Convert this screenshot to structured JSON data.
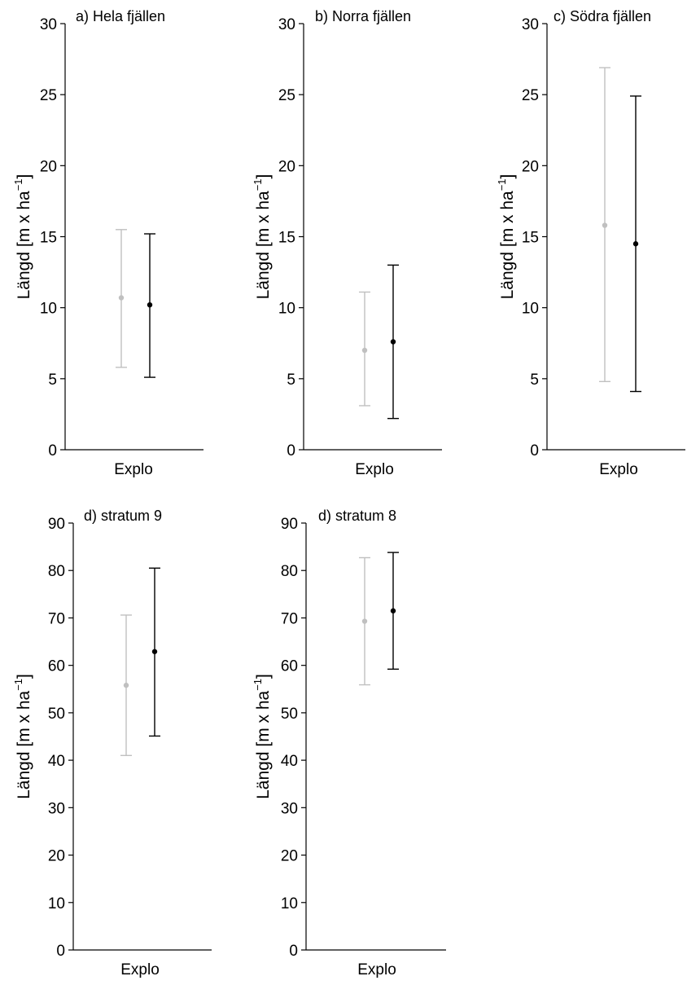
{
  "chart_data": [
    {
      "type": "errorbar",
      "title": "a) Hela fjällen",
      "ylabel_main": "Längd  [m x ha",
      "ylabel_sup": "−1",
      "ylabel_end": "]",
      "ylim": [
        0,
        30
      ],
      "yticks": [
        0,
        5,
        10,
        15,
        20,
        25,
        30
      ],
      "categories": [
        "Explo"
      ],
      "series": [
        {
          "color": "#c0c0c0",
          "mean": 10.7,
          "low": 5.8,
          "high": 15.5
        },
        {
          "color": "#000000",
          "mean": 10.2,
          "low": 5.1,
          "high": 15.2
        }
      ]
    },
    {
      "type": "errorbar",
      "title": "b) Norra fjällen",
      "ylabel_main": "Längd  [m x ha",
      "ylabel_sup": "−1",
      "ylabel_end": "]",
      "ylim": [
        0,
        30
      ],
      "yticks": [
        0,
        5,
        10,
        15,
        20,
        25,
        30
      ],
      "categories": [
        "Explo"
      ],
      "series": [
        {
          "color": "#c0c0c0",
          "mean": 7.0,
          "low": 3.1,
          "high": 11.1
        },
        {
          "color": "#000000",
          "mean": 7.6,
          "low": 2.2,
          "high": 13.0
        }
      ]
    },
    {
      "type": "errorbar",
      "title": "c) Södra fjällen",
      "ylabel_main": "Längd  [m x ha",
      "ylabel_sup": "−1",
      "ylabel_end": "]",
      "ylim": [
        0,
        30
      ],
      "yticks": [
        0,
        5,
        10,
        15,
        20,
        25,
        30
      ],
      "categories": [
        "Explo"
      ],
      "series": [
        {
          "color": "#c0c0c0",
          "mean": 15.8,
          "low": 4.8,
          "high": 26.9
        },
        {
          "color": "#000000",
          "mean": 14.5,
          "low": 4.1,
          "high": 24.9
        }
      ]
    },
    {
      "type": "errorbar",
      "title": "d) stratum 9",
      "ylabel_main": "Längd  [m x ha",
      "ylabel_sup": "−1",
      "ylabel_end": "]",
      "ylim": [
        0,
        90
      ],
      "yticks": [
        0,
        10,
        20,
        30,
        40,
        50,
        60,
        70,
        80,
        90
      ],
      "categories": [
        "Explo"
      ],
      "series": [
        {
          "color": "#c0c0c0",
          "mean": 55.8,
          "low": 41.0,
          "high": 70.6
        },
        {
          "color": "#000000",
          "mean": 62.9,
          "low": 45.1,
          "high": 80.5
        }
      ]
    },
    {
      "type": "errorbar",
      "title": "d) stratum 8",
      "ylabel_main": "Längd  [m x ha",
      "ylabel_sup": "−1",
      "ylabel_end": "]",
      "ylim": [
        0,
        90
      ],
      "yticks": [
        0,
        10,
        20,
        30,
        40,
        50,
        60,
        70,
        80,
        90
      ],
      "categories": [
        "Explo"
      ],
      "series": [
        {
          "color": "#c0c0c0",
          "mean": 69.3,
          "low": 55.9,
          "high": 82.7
        },
        {
          "color": "#000000",
          "mean": 71.5,
          "low": 59.2,
          "high": 83.8
        }
      ]
    }
  ]
}
